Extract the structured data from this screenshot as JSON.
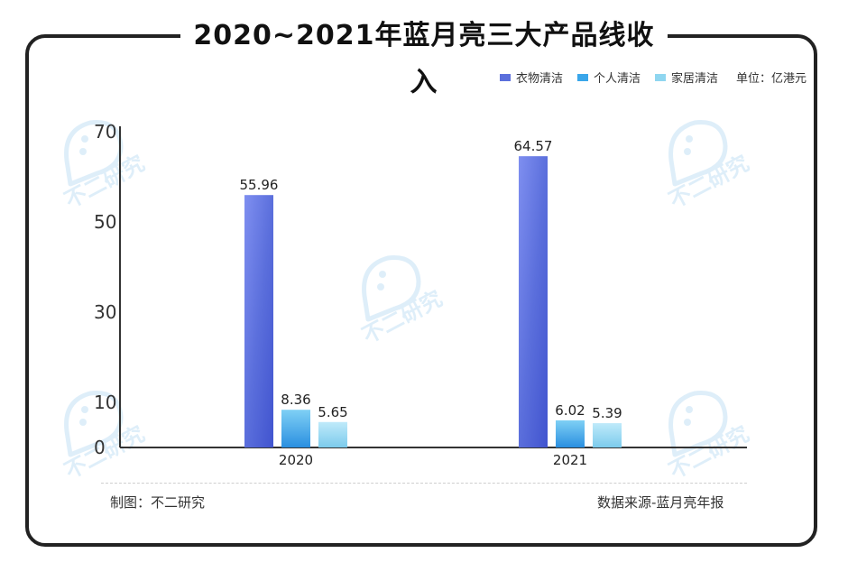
{
  "chart_data": {
    "type": "bar",
    "title": "2020~2021年蓝月亮三大产品线收入",
    "unit": "单位：亿港元",
    "categories": [
      "2020",
      "2021"
    ],
    "series": [
      {
        "name": "衣物清洁",
        "values": [
          55.96,
          64.57
        ],
        "color": "#5b6fdc"
      },
      {
        "name": "个人清洁",
        "values": [
          8.36,
          6.02
        ],
        "color": "#3aa6ea"
      },
      {
        "name": "家居清洁",
        "values": [
          5.65,
          5.39
        ],
        "color": "#8fd6f0"
      }
    ],
    "y_ticks": [
      0,
      10,
      30,
      50,
      70
    ],
    "ylim": [
      0,
      70
    ],
    "value_labels": [
      [
        "55.96",
        "8.36",
        "5.65"
      ],
      [
        "64.57",
        "6.02",
        "5.39"
      ]
    ],
    "grid": false,
    "legend_position": "top-right"
  },
  "footer": {
    "left": "制图：不二研究",
    "right": "数据来源-蓝月亮年报"
  },
  "watermark": "不二研究"
}
